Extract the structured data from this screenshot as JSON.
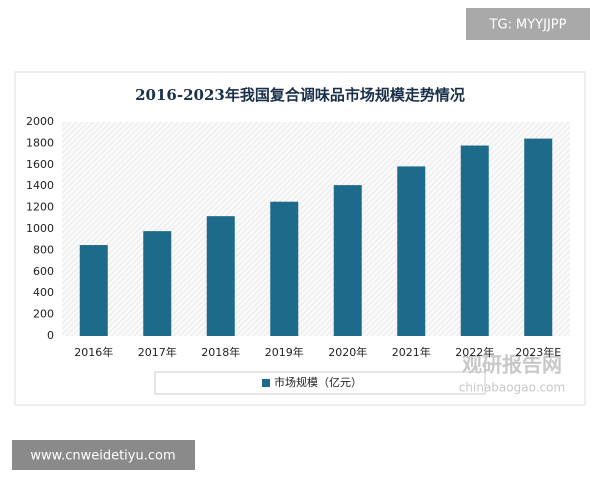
{
  "chart_data": {
    "type": "bar",
    "title": "2016-2023年我国复合调味品市场规模走势情况",
    "categories": [
      "2016年",
      "2017年",
      "2018年",
      "2019年",
      "2020年",
      "2021年",
      "2022年",
      "2023年E"
    ],
    "series": [
      {
        "name": "市场规模（亿元）",
        "color": "#1d6a8a",
        "values": [
          850,
          980,
          1120,
          1255,
          1410,
          1585,
          1780,
          1845
        ]
      }
    ],
    "ylim": [
      0,
      2000
    ],
    "yticks": [
      0,
      200,
      400,
      600,
      800,
      1000,
      1200,
      1400,
      1600,
      1800,
      2000
    ],
    "grid": false,
    "legend": "bottom"
  },
  "watermarks": {
    "top": "TG: MYYJJPP",
    "bottom": "www.cnweidetiyu.com"
  },
  "logo": {
    "name": "观研报告网",
    "url": "chinabaogao.com"
  }
}
